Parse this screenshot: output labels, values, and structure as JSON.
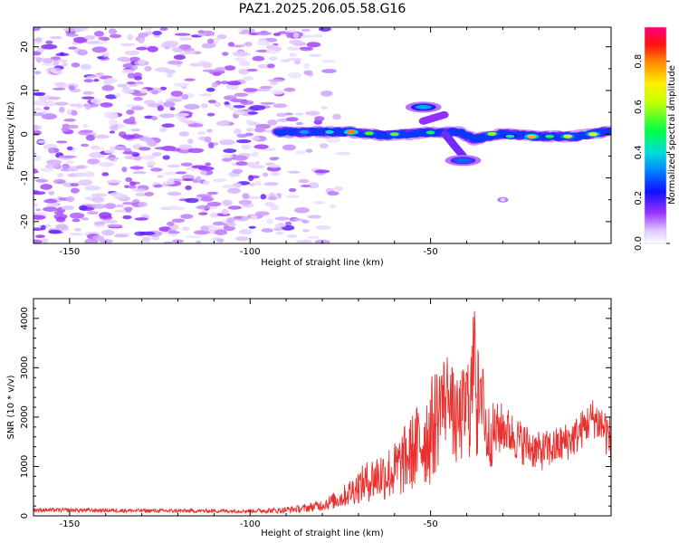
{
  "title": "PAZ1.2025.206.05.58.G16",
  "chart_data": [
    {
      "type": "heatmap",
      "title": "PAZ1.2025.206.05.58.G16",
      "xlabel": "Height of straight line (km)",
      "ylabel": "Frequency (Hz)",
      "xlim": [
        -160,
        0
      ],
      "ylim": [
        -25,
        24.5
      ],
      "x_ticks": [
        -150,
        -100,
        -50
      ],
      "y_ticks": [
        -20,
        -10,
        0,
        10,
        20
      ],
      "x_tick_labels": [
        "-150",
        "-100",
        "-50"
      ],
      "y_tick_labels": [
        "-20",
        "-10",
        "0",
        "10",
        "20"
      ],
      "colorbar": {
        "label": "Normalized spectral amplitude",
        "range": [
          0,
          0.95
        ],
        "ticks": [
          0.0,
          0.2,
          0.4,
          0.6,
          0.8
        ],
        "tick_labels": [
          "0.0",
          "0.2",
          "0.4",
          "0.6",
          "0.8"
        ],
        "colormap": "rainbow"
      },
      "features": [
        {
          "kind": "noise",
          "x_range": [
            -160,
            -80
          ],
          "y_range": [
            -25,
            24.5
          ],
          "amplitude": 0.1
        },
        {
          "kind": "ridge",
          "points": [
            [
              -92,
              0.5
            ],
            [
              -80,
              0.5
            ],
            [
              -72,
              0.5
            ],
            [
              -64,
              -0.2
            ],
            [
              -56,
              0
            ],
            [
              -52,
              0.4
            ],
            [
              -46,
              0.4
            ],
            [
              -42,
              0.5
            ],
            [
              -38,
              -1.2
            ],
            [
              -30,
              0.1
            ],
            [
              -20,
              -0.5
            ],
            [
              -10,
              -0.5
            ],
            [
              0,
              0.8
            ]
          ],
          "peak_amplitude": 0.9
        },
        {
          "kind": "spot",
          "x": -52,
          "y": 6.2,
          "amplitude": 0.35
        },
        {
          "kind": "spot",
          "x": -41,
          "y": -6,
          "amplitude": 0.3
        },
        {
          "kind": "spot",
          "x": -30,
          "y": -15,
          "amplitude": 0.08
        }
      ]
    },
    {
      "type": "line",
      "xlabel": "Height of straight line (km)",
      "ylabel": "SNR (10 * v/v)",
      "xlim": [
        -160,
        0
      ],
      "ylim": [
        0,
        4400
      ],
      "x_ticks": [
        -150,
        -100,
        -50
      ],
      "y_ticks": [
        0,
        1000,
        2000,
        3000,
        4000
      ],
      "x_tick_labels": [
        "-150",
        "-100",
        "-50"
      ],
      "y_tick_labels": [
        "0",
        "1000",
        "2000",
        "3000",
        "4000"
      ],
      "color": "#e8312f",
      "envelope": {
        "x": [
          -160,
          -140,
          -120,
          -100,
          -92,
          -85,
          -80,
          -75,
          -70,
          -65,
          -60,
          -55,
          -50,
          -47,
          -45,
          -43,
          -40,
          -38,
          -36,
          -34,
          -32,
          -30,
          -25,
          -20,
          -15,
          -10,
          -5,
          -2,
          0
        ],
        "mean": [
          120,
          110,
          100,
          100,
          110,
          150,
          220,
          350,
          600,
          800,
          900,
          1300,
          1700,
          2200,
          2500,
          1800,
          2200,
          2600,
          2000,
          1600,
          1700,
          1800,
          1500,
          1300,
          1400,
          1600,
          2000,
          1800,
          1500
        ],
        "amp": [
          40,
          40,
          40,
          40,
          60,
          80,
          120,
          200,
          350,
          500,
          600,
          800,
          1100,
          1100,
          900,
          900,
          1000,
          1600,
          900,
          700,
          600,
          500,
          450,
          400,
          400,
          400,
          400,
          500,
          500
        ]
      },
      "peaks": [
        [
          -37.8,
          4400
        ],
        [
          -47,
          3000
        ],
        [
          -40,
          2900
        ],
        [
          -45,
          2700
        ],
        [
          -35.5,
          3250
        ]
      ]
    }
  ]
}
